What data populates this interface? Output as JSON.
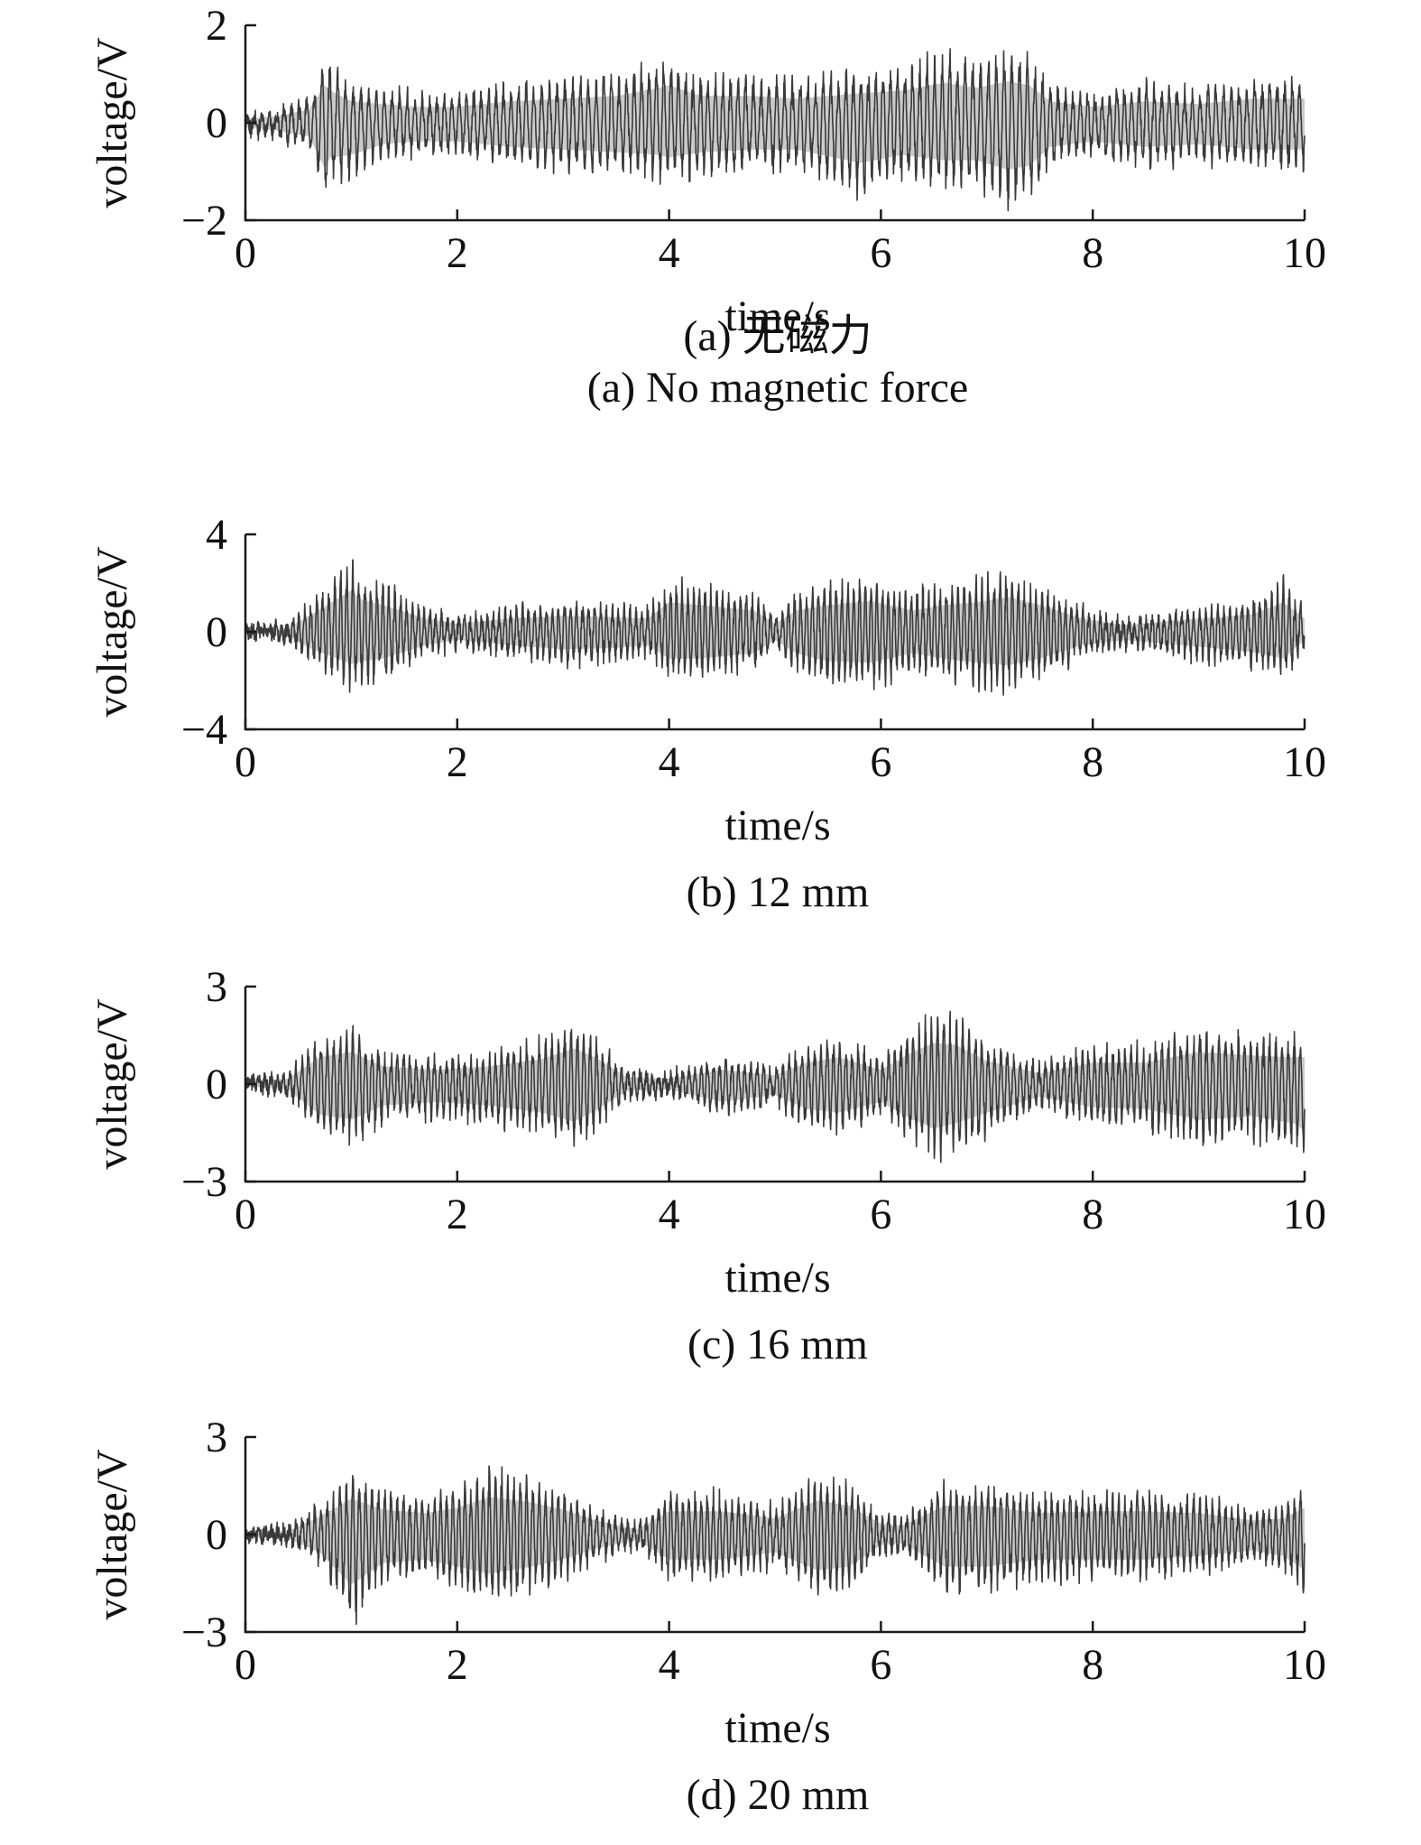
{
  "colors": {
    "ink": "#1a1a1a",
    "signal": "#3a3a3a",
    "background": "#ffffff"
  },
  "chart_data": [
    {
      "type": "line",
      "captions": [
        "(a) 无磁力",
        "(a) No magnetic force"
      ],
      "xlabel": "time/s",
      "ylabel": "voltage/V",
      "xlim": [
        0,
        10
      ],
      "ylim": [
        -2,
        2
      ],
      "xticks": [
        "0",
        "2",
        "4",
        "6",
        "8",
        "10"
      ],
      "yticks": [
        "2",
        "0",
        "−2"
      ],
      "grid": false,
      "envelope": {
        "x": [
          0,
          0.3,
          0.6,
          0.75,
          0.8,
          1.0,
          1.3,
          1.6,
          2.0,
          2.5,
          3.0,
          3.5,
          3.9,
          4.0,
          4.3,
          4.8,
          5.2,
          5.8,
          6.2,
          6.6,
          6.9,
          7.2,
          7.4,
          7.6,
          8.0,
          8.5,
          9.0,
          9.5,
          10.0
        ],
        "upper": [
          0.15,
          0.25,
          0.5,
          1.4,
          1.2,
          0.8,
          0.7,
          0.6,
          0.6,
          0.8,
          0.9,
          1.0,
          1.3,
          1.4,
          1.0,
          1.0,
          0.9,
          1.1,
          1.2,
          1.5,
          1.3,
          1.55,
          1.4,
          0.8,
          0.6,
          0.8,
          0.7,
          0.9,
          0.9
        ],
        "lower": [
          -0.15,
          -0.3,
          -0.5,
          -1.7,
          -1.3,
          -1.2,
          -0.8,
          -0.7,
          -0.7,
          -0.9,
          -1.0,
          -1.1,
          -1.2,
          -1.3,
          -1.1,
          -1.0,
          -1.0,
          -1.5,
          -1.2,
          -1.4,
          -1.4,
          -1.75,
          -1.6,
          -0.9,
          -0.7,
          -0.9,
          -0.8,
          -1.0,
          -1.0
        ]
      }
    },
    {
      "type": "line",
      "captions": [
        "(b) 12 mm"
      ],
      "xlabel": "time/s",
      "ylabel": "voltage/V",
      "xlim": [
        0,
        10
      ],
      "ylim": [
        -4,
        4
      ],
      "xticks": [
        "0",
        "2",
        "4",
        "6",
        "8",
        "10"
      ],
      "yticks": [
        "4",
        "0",
        "−4"
      ],
      "grid": false,
      "envelope": {
        "x": [
          0,
          0.4,
          0.6,
          1.0,
          1.1,
          1.3,
          1.7,
          2.0,
          2.5,
          3.0,
          3.5,
          3.8,
          4.0,
          4.3,
          4.8,
          5.0,
          5.2,
          5.5,
          5.9,
          6.3,
          6.6,
          6.9,
          7.2,
          7.5,
          7.9,
          8.3,
          8.7,
          9.0,
          9.5,
          9.8,
          10.0
        ],
        "upper": [
          0.1,
          0.3,
          1.2,
          3.1,
          2.4,
          2.0,
          1.0,
          0.6,
          1.0,
          1.2,
          1.1,
          1.0,
          2.2,
          2.0,
          1.6,
          0.6,
          1.6,
          2.0,
          2.3,
          1.6,
          2.0,
          2.2,
          2.6,
          2.0,
          1.0,
          0.5,
          0.8,
          1.0,
          1.3,
          2.2,
          1.0
        ],
        "lower": [
          -0.1,
          -0.3,
          -1.2,
          -2.4,
          -2.2,
          -2.0,
          -1.0,
          -0.6,
          -1.0,
          -1.3,
          -1.2,
          -1.0,
          -2.0,
          -2.0,
          -1.6,
          -0.6,
          -1.6,
          -2.2,
          -2.3,
          -1.6,
          -2.0,
          -2.3,
          -2.5,
          -2.0,
          -1.0,
          -0.6,
          -0.9,
          -1.1,
          -1.5,
          -2.0,
          -0.6
        ]
      }
    },
    {
      "type": "line",
      "captions": [
        "(c) 16 mm"
      ],
      "xlabel": "time/s",
      "ylabel": "voltage/V",
      "xlim": [
        0,
        10
      ],
      "ylim": [
        -3,
        3
      ],
      "xticks": [
        "0",
        "2",
        "4",
        "6",
        "8",
        "10"
      ],
      "yticks": [
        "3",
        "0",
        "−3"
      ],
      "grid": false,
      "envelope": {
        "x": [
          0,
          0.4,
          0.7,
          1.0,
          1.3,
          1.8,
          2.3,
          2.8,
          3.1,
          3.3,
          3.6,
          4.0,
          4.5,
          5.0,
          5.3,
          5.6,
          6.0,
          6.3,
          6.5,
          6.7,
          7.0,
          7.5,
          8.0,
          8.5,
          9.0,
          9.5,
          9.9,
          10.0
        ],
        "upper": [
          0.1,
          0.3,
          1.5,
          1.8,
          1.0,
          0.8,
          1.0,
          1.4,
          2.0,
          1.5,
          0.4,
          0.3,
          0.8,
          0.5,
          1.2,
          1.5,
          0.8,
          1.8,
          2.3,
          2.2,
          1.3,
          0.6,
          1.2,
          1.2,
          1.8,
          1.6,
          1.5,
          1.5
        ],
        "lower": [
          -0.1,
          -0.3,
          -1.7,
          -2.0,
          -1.2,
          -1.0,
          -1.2,
          -1.6,
          -2.1,
          -1.5,
          -0.4,
          -0.3,
          -1.0,
          -0.6,
          -1.4,
          -1.6,
          -1.0,
          -2.0,
          -2.5,
          -2.2,
          -1.6,
          -0.7,
          -1.3,
          -1.4,
          -2.0,
          -1.8,
          -2.2,
          -2.6
        ]
      }
    },
    {
      "type": "line",
      "captions": [
        "(d) 20 mm"
      ],
      "xlabel": "time/s",
      "ylabel": "voltage/V",
      "xlim": [
        0,
        10
      ],
      "ylim": [
        -3,
        3
      ],
      "xticks": [
        "0",
        "2",
        "4",
        "6",
        "8",
        "10"
      ],
      "yticks": [
        "3",
        "0",
        "−3"
      ],
      "grid": false,
      "envelope": {
        "x": [
          0,
          0.4,
          0.7,
          1.0,
          1.3,
          1.7,
          2.0,
          2.3,
          2.7,
          3.0,
          3.3,
          3.7,
          4.0,
          4.5,
          5.0,
          5.4,
          5.7,
          6.0,
          6.2,
          6.6,
          7.0,
          7.5,
          8.0,
          8.5,
          9.0,
          9.5,
          9.8,
          10.0
        ],
        "upper": [
          0.1,
          0.2,
          1.0,
          2.0,
          1.4,
          1.2,
          1.5,
          2.1,
          1.8,
          1.4,
          0.8,
          0.3,
          1.3,
          1.3,
          0.9,
          1.9,
          1.6,
          0.6,
          0.5,
          1.6,
          1.6,
          1.2,
          1.3,
          1.3,
          1.2,
          0.8,
          0.9,
          1.5
        ],
        "lower": [
          -0.1,
          -0.2,
          -1.0,
          -2.8,
          -1.6,
          -1.4,
          -1.8,
          -2.2,
          -1.8,
          -1.4,
          -0.8,
          -0.3,
          -1.4,
          -1.4,
          -1.0,
          -2.0,
          -1.8,
          -0.6,
          -0.5,
          -1.8,
          -1.8,
          -1.4,
          -1.4,
          -1.4,
          -1.2,
          -0.9,
          -1.2,
          -2.0
        ]
      }
    }
  ]
}
